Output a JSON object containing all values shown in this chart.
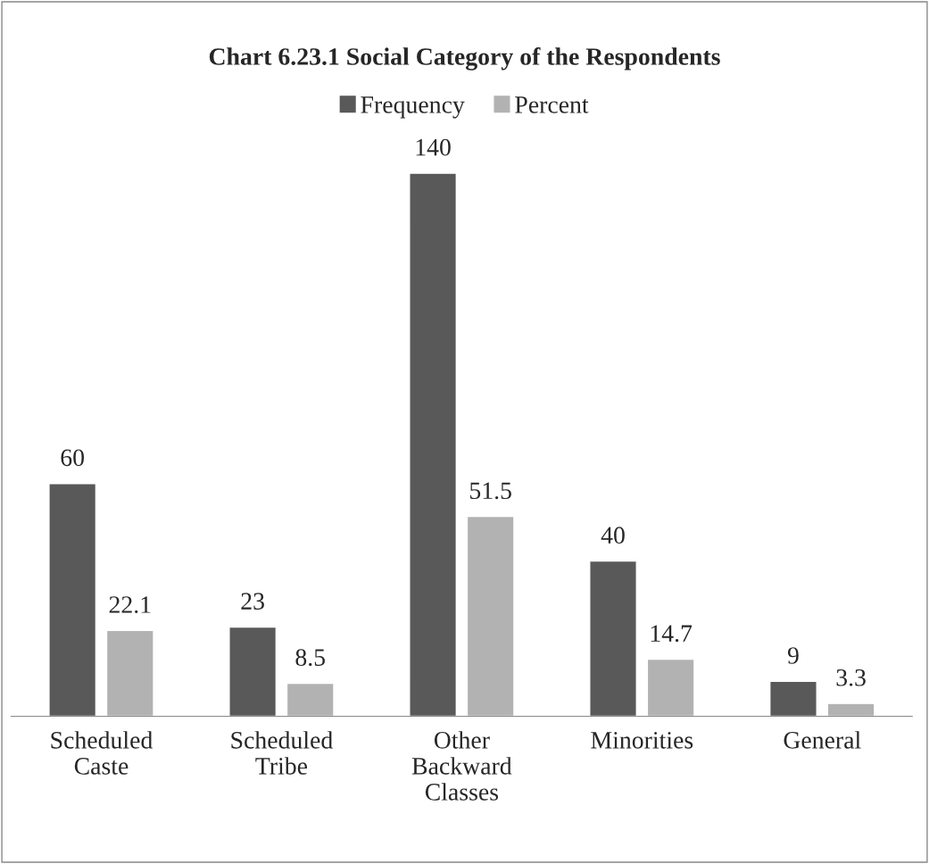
{
  "chart_data": {
    "type": "bar",
    "title": "Chart 6.23.1 Social Category of the Respondents",
    "categories": [
      "Scheduled Caste",
      "Scheduled Tribe",
      "Other Backward Classes",
      "Minorities",
      "General"
    ],
    "series": [
      {
        "name": "Frequency",
        "color": "#595959",
        "values": [
          60,
          23,
          140,
          40,
          9
        ]
      },
      {
        "name": "Percent",
        "color": "#b2b2b2",
        "values": [
          22.1,
          8.5,
          51.5,
          14.7,
          3.3
        ]
      }
    ],
    "data_labels": true,
    "legend": "top",
    "grid": false
  }
}
